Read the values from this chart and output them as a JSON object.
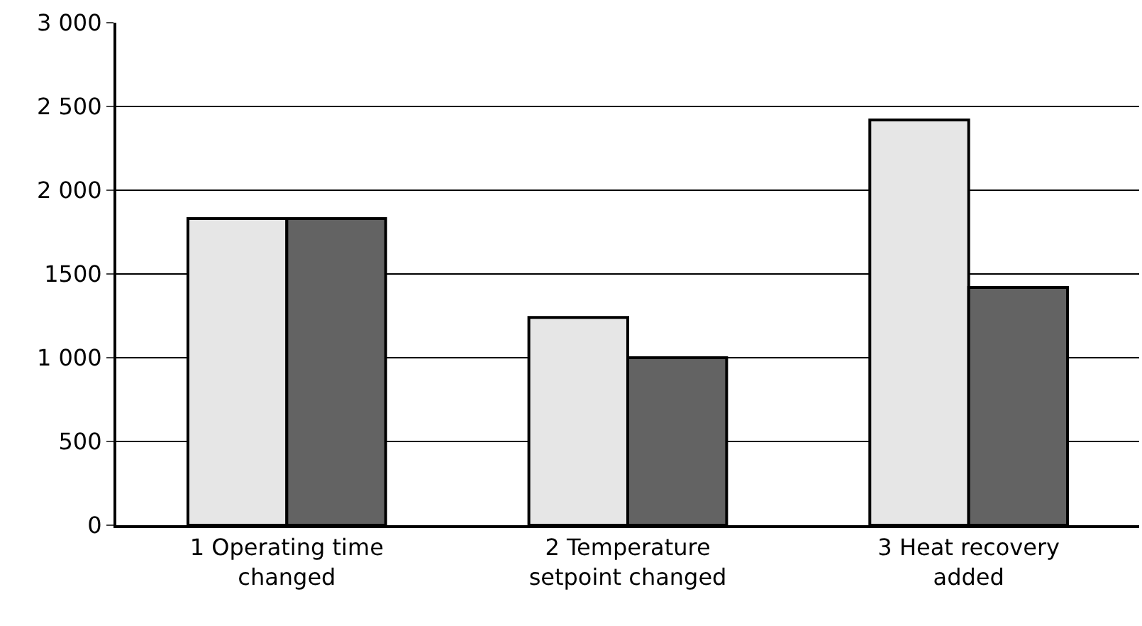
{
  "chart_data": {
    "type": "bar",
    "categories": [
      "1 Operating time changed",
      "2 Temperature setpoint changed",
      "3 Heat recovery added"
    ],
    "series": [
      {
        "color": "#e6e6e6",
        "values": [
          1830,
          1240,
          2420
        ]
      },
      {
        "color": "#636363",
        "values": [
          1830,
          1000,
          1420
        ]
      }
    ],
    "ylim": [
      0,
      3000
    ],
    "yticks": [
      0,
      500,
      {
        "value": 1000,
        "label": "1 000"
      },
      1500,
      {
        "value": 2000,
        "label": "2 000"
      },
      {
        "value": 2500,
        "label": "2 500"
      },
      {
        "value": 3000,
        "label": "3 000"
      }
    ],
    "grid": "y"
  }
}
